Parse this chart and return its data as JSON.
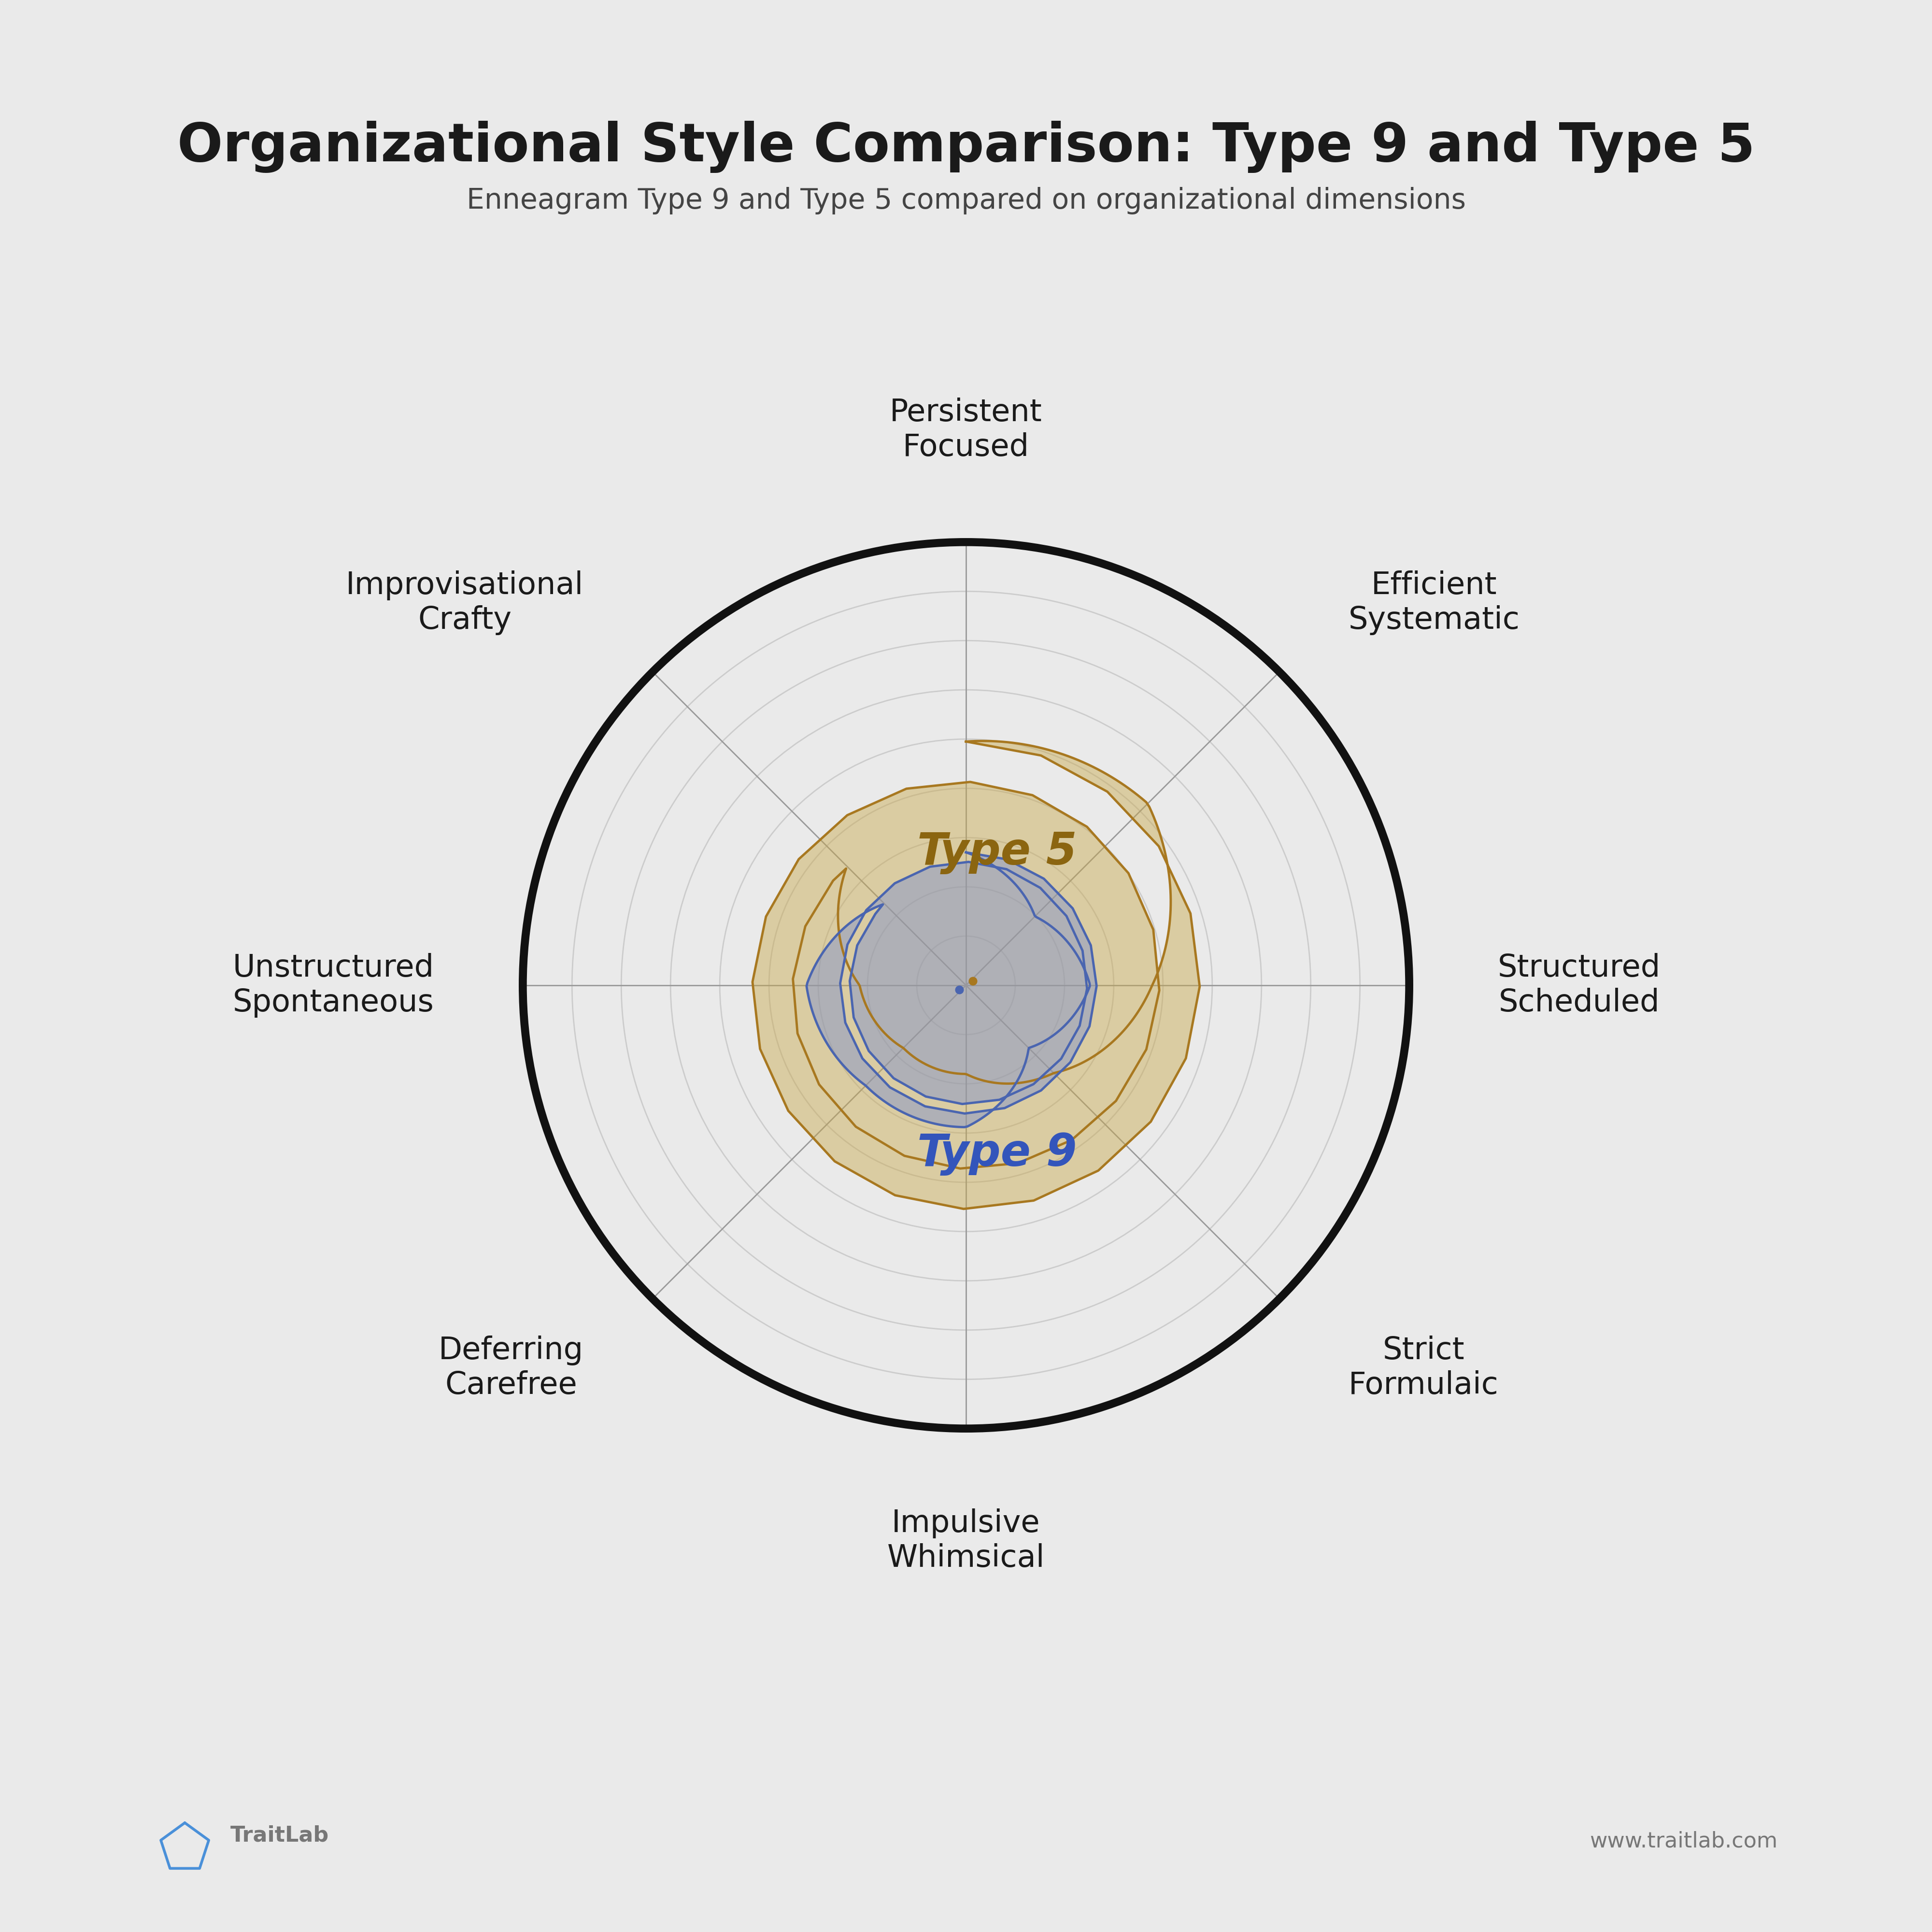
{
  "title": "Organizational Style Comparison: Type 9 and Type 5",
  "subtitle": "Enneagram Type 9 and Type 5 compared on organizational dimensions",
  "background_color": "#EAEAEA",
  "axes_labels": [
    "Persistent\nFocused",
    "Efficient\nSystematic",
    "Structured\nScheduled",
    "Strict\nFormulaic",
    "Impulsive\nWhimsical",
    "Deferring\nCarefree",
    "Unstructured\nSpontaneous",
    "Improvisational\nCrafty"
  ],
  "n_axes": 8,
  "type9_values": [
    3.0,
    2.2,
    2.8,
    2.0,
    3.2,
    3.2,
    3.6,
    2.6
  ],
  "type5_values": [
    5.5,
    5.8,
    4.2,
    2.8,
    2.0,
    2.0,
    2.4,
    3.8
  ],
  "type9_color": "#7B8FD0",
  "type9_fill_alpha": 0.45,
  "type9_edge_color": "#4A65B0",
  "type5_color": "#C8A84B",
  "type5_fill_alpha": 0.45,
  "type5_edge_color": "#A87820",
  "type9_label_color": "#3355BB",
  "type5_label_color": "#8B6510",
  "max_value": 10,
  "n_rings": 9,
  "ring_color": "#CCCCCC",
  "axis_line_color": "#999999",
  "outer_circle_color": "#111111",
  "outer_circle_lw": 12.0,
  "title_fontsize": 80,
  "subtitle_fontsize": 42,
  "label_fontsize": 46,
  "type_label_fontsize": 66,
  "footer_fontsize": 32,
  "title_color": "#1A1A1A",
  "subtitle_color": "#444444",
  "label_color": "#1A1A1A",
  "traitlab_color": "#777777",
  "pentagon_color": "#4A90D9",
  "separator_color": "#AAAAAA"
}
